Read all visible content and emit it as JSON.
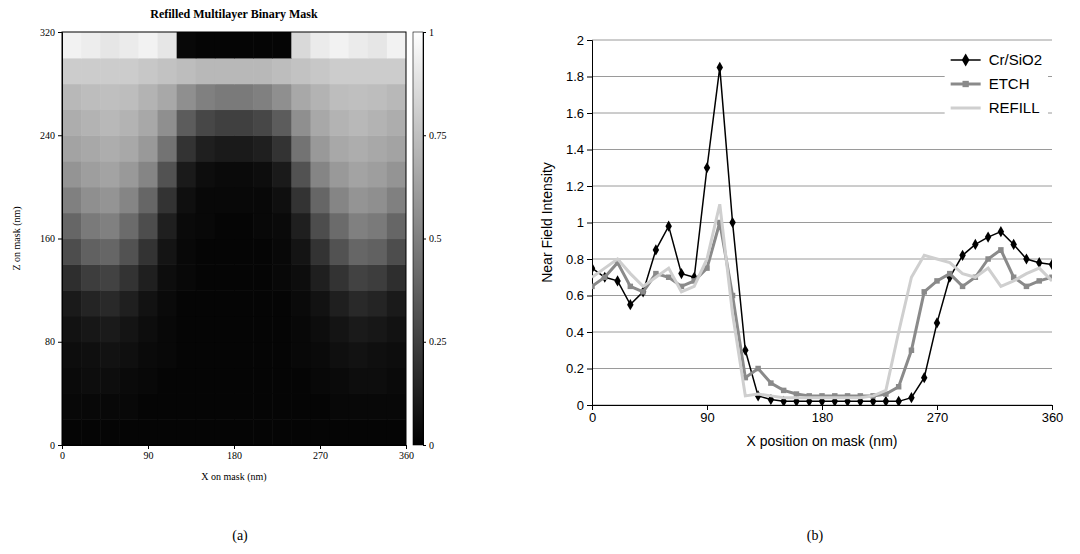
{
  "chart_data": [
    {
      "type": "heatmap",
      "title": "Refilled Multilayer Binary Mask",
      "x_label": "X on mask (nm)",
      "y_label": "Z on mask (nm)",
      "x": [
        10,
        30,
        50,
        70,
        90,
        110,
        130,
        150,
        170,
        190,
        210,
        230,
        250,
        270,
        290,
        310,
        330,
        350
      ],
      "y": [
        10,
        30,
        50,
        70,
        90,
        110,
        130,
        150,
        170,
        190,
        210,
        230,
        250,
        270,
        290,
        310
      ],
      "values": [
        [
          0.02,
          0.02,
          0.02,
          0.02,
          0.02,
          0.02,
          0.02,
          0.02,
          0.02,
          0.02,
          0.02,
          0.02,
          0.02,
          0.02,
          0.02,
          0.02,
          0.02,
          0.02
        ],
        [
          0.03,
          0.03,
          0.03,
          0.03,
          0.02,
          0.02,
          0.02,
          0.02,
          0.02,
          0.02,
          0.02,
          0.02,
          0.02,
          0.02,
          0.03,
          0.03,
          0.03,
          0.03
        ],
        [
          0.04,
          0.05,
          0.05,
          0.04,
          0.03,
          0.02,
          0.02,
          0.02,
          0.02,
          0.02,
          0.02,
          0.02,
          0.02,
          0.03,
          0.04,
          0.05,
          0.05,
          0.04
        ],
        [
          0.05,
          0.06,
          0.07,
          0.06,
          0.04,
          0.03,
          0.02,
          0.02,
          0.02,
          0.02,
          0.02,
          0.02,
          0.03,
          0.04,
          0.06,
          0.07,
          0.06,
          0.05
        ],
        [
          0.07,
          0.09,
          0.1,
          0.08,
          0.05,
          0.03,
          0.02,
          0.02,
          0.02,
          0.02,
          0.02,
          0.02,
          0.03,
          0.05,
          0.08,
          0.1,
          0.09,
          0.07
        ],
        [
          0.1,
          0.14,
          0.16,
          0.12,
          0.07,
          0.04,
          0.02,
          0.02,
          0.02,
          0.02,
          0.02,
          0.02,
          0.04,
          0.07,
          0.12,
          0.16,
          0.14,
          0.1
        ],
        [
          0.18,
          0.24,
          0.26,
          0.2,
          0.12,
          0.05,
          0.03,
          0.02,
          0.02,
          0.02,
          0.02,
          0.03,
          0.05,
          0.12,
          0.2,
          0.26,
          0.24,
          0.18
        ],
        [
          0.3,
          0.38,
          0.4,
          0.32,
          0.2,
          0.08,
          0.03,
          0.02,
          0.02,
          0.02,
          0.02,
          0.03,
          0.08,
          0.2,
          0.32,
          0.4,
          0.38,
          0.3
        ],
        [
          0.4,
          0.48,
          0.5,
          0.42,
          0.3,
          0.12,
          0.04,
          0.03,
          0.02,
          0.02,
          0.03,
          0.04,
          0.12,
          0.3,
          0.42,
          0.5,
          0.48,
          0.4
        ],
        [
          0.5,
          0.56,
          0.58,
          0.52,
          0.4,
          0.2,
          0.06,
          0.03,
          0.03,
          0.03,
          0.03,
          0.06,
          0.2,
          0.4,
          0.52,
          0.58,
          0.56,
          0.5
        ],
        [
          0.58,
          0.62,
          0.64,
          0.6,
          0.52,
          0.32,
          0.1,
          0.05,
          0.04,
          0.04,
          0.05,
          0.1,
          0.32,
          0.52,
          0.6,
          0.64,
          0.62,
          0.58
        ],
        [
          0.64,
          0.66,
          0.68,
          0.66,
          0.6,
          0.45,
          0.2,
          0.12,
          0.1,
          0.1,
          0.12,
          0.2,
          0.45,
          0.6,
          0.66,
          0.68,
          0.66,
          0.64
        ],
        [
          0.68,
          0.7,
          0.72,
          0.7,
          0.66,
          0.56,
          0.36,
          0.28,
          0.25,
          0.25,
          0.28,
          0.36,
          0.56,
          0.66,
          0.7,
          0.72,
          0.7,
          0.68
        ],
        [
          0.72,
          0.74,
          0.75,
          0.74,
          0.7,
          0.66,
          0.56,
          0.5,
          0.48,
          0.48,
          0.5,
          0.56,
          0.66,
          0.7,
          0.74,
          0.75,
          0.74,
          0.72
        ],
        [
          0.8,
          0.8,
          0.8,
          0.8,
          0.78,
          0.76,
          0.74,
          0.72,
          0.72,
          0.72,
          0.72,
          0.74,
          0.76,
          0.78,
          0.8,
          0.8,
          0.8,
          0.8
        ],
        [
          0.95,
          0.93,
          0.9,
          0.92,
          0.95,
          0.9,
          0.03,
          0.02,
          0.02,
          0.02,
          0.02,
          0.02,
          0.85,
          0.92,
          0.95,
          0.92,
          0.9,
          0.95
        ]
      ],
      "xlim": [
        0,
        360
      ],
      "xticks": [
        0,
        90,
        180,
        270,
        360
      ],
      "ylim": [
        0,
        320
      ],
      "yticks": [
        0,
        80,
        160,
        240,
        320
      ],
      "colorbar_range": [
        0,
        1
      ],
      "colorbar_ticks": [
        0,
        0.25,
        0.5,
        0.75,
        1
      ],
      "annotations": [
        "(a)"
      ]
    },
    {
      "type": "line",
      "x_label": "X position on mask (nm)",
      "y_label": "Near Field Intensity",
      "x": [
        0,
        10,
        20,
        30,
        40,
        50,
        60,
        70,
        80,
        90,
        100,
        110,
        120,
        130,
        140,
        150,
        160,
        170,
        180,
        190,
        200,
        210,
        220,
        230,
        240,
        250,
        260,
        270,
        280,
        290,
        300,
        310,
        320,
        330,
        340,
        350,
        360
      ],
      "series": [
        {
          "name": "Cr/SiO2",
          "color": "#000000",
          "marker": "diamond",
          "line_style": "solid",
          "values": [
            0.75,
            0.7,
            0.68,
            0.55,
            0.62,
            0.85,
            0.98,
            0.72,
            0.7,
            1.3,
            1.85,
            1.0,
            0.3,
            0.05,
            0.03,
            0.02,
            0.02,
            0.02,
            0.02,
            0.02,
            0.02,
            0.02,
            0.02,
            0.02,
            0.02,
            0.04,
            0.15,
            0.45,
            0.7,
            0.82,
            0.88,
            0.92,
            0.95,
            0.88,
            0.8,
            0.78,
            0.77
          ]
        },
        {
          "name": "ETCH",
          "color": "#8a8a8a",
          "marker": "square",
          "line_style": "solid",
          "values": [
            0.65,
            0.7,
            0.78,
            0.65,
            0.62,
            0.72,
            0.7,
            0.65,
            0.68,
            0.75,
            1.0,
            0.6,
            0.15,
            0.2,
            0.12,
            0.08,
            0.06,
            0.05,
            0.05,
            0.05,
            0.05,
            0.05,
            0.05,
            0.06,
            0.1,
            0.3,
            0.62,
            0.68,
            0.72,
            0.65,
            0.7,
            0.8,
            0.85,
            0.7,
            0.65,
            0.68,
            0.7
          ]
        },
        {
          "name": "REFILL",
          "color": "#cfcfcf",
          "marker": "none",
          "line_style": "solid",
          "values": [
            0.7,
            0.75,
            0.8,
            0.72,
            0.65,
            0.7,
            0.75,
            0.62,
            0.65,
            0.8,
            1.1,
            0.5,
            0.05,
            0.06,
            0.05,
            0.04,
            0.04,
            0.04,
            0.04,
            0.04,
            0.04,
            0.04,
            0.05,
            0.08,
            0.4,
            0.7,
            0.82,
            0.8,
            0.78,
            0.72,
            0.7,
            0.75,
            0.65,
            0.68,
            0.72,
            0.75,
            0.68
          ]
        }
      ],
      "xlim": [
        0,
        360
      ],
      "xticks": [
        0,
        90,
        180,
        270,
        360
      ],
      "ylim": [
        0,
        2
      ],
      "yticks": [
        0,
        0.2,
        0.4,
        0.6,
        0.8,
        1,
        1.2,
        1.4,
        1.6,
        1.8,
        2
      ],
      "grid": true,
      "legend": "top-right",
      "annotations": [
        "(b)"
      ]
    }
  ]
}
